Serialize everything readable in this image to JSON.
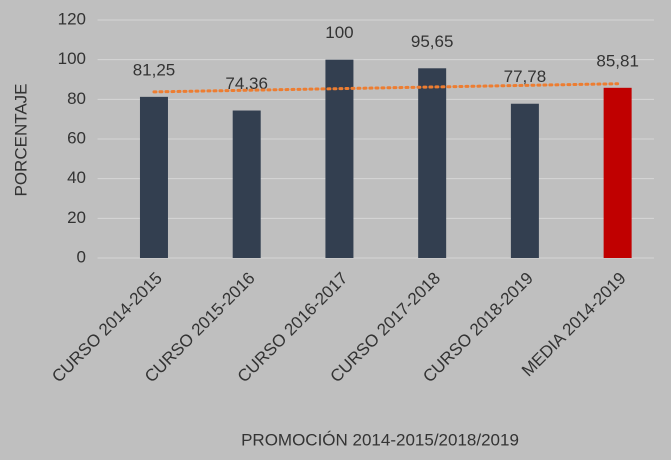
{
  "chart_data": {
    "type": "bar",
    "x_label": "PROMOCIÓN 2014-2015/2018/2019",
    "y_label": "PORCENTAJE",
    "categories": [
      "CURSO 2014-2015",
      "CURSO 2015-2016",
      "CURSO 2016-2017",
      "CURSO 2017-2018",
      "CURSO 2018-2019",
      "MEDIA 2014-2019"
    ],
    "values": [
      81.25,
      74.36,
      100,
      95.65,
      77.78,
      85.81
    ],
    "value_labels": [
      "81,25",
      "74,36",
      "100",
      "95,65",
      "77,78",
      "85,81"
    ],
    "colors": [
      "#333f50",
      "#333f50",
      "#333f50",
      "#333f50",
      "#333f50",
      "#c00000"
    ],
    "ylim": [
      0,
      120
    ],
    "yticks": [
      0,
      20,
      40,
      60,
      80,
      100,
      120
    ],
    "grid": true,
    "trendline": {
      "type": "linear",
      "color": "#ed7d31",
      "style": "dotted"
    }
  }
}
